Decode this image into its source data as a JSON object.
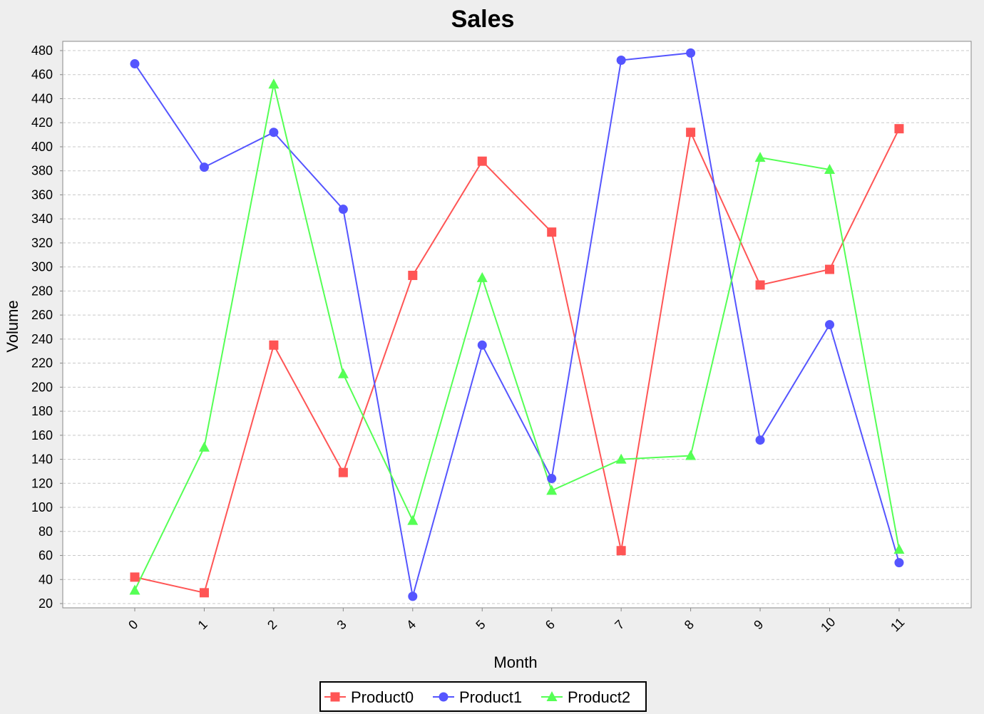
{
  "chart_data": {
    "type": "line",
    "title": "Sales",
    "xlabel": "Month",
    "ylabel": "Volume",
    "categories": [
      "0",
      "1",
      "2",
      "3",
      "4",
      "5",
      "6",
      "7",
      "8",
      "9",
      "10",
      "11"
    ],
    "ylim": [
      15,
      485
    ],
    "yticks": [
      20,
      40,
      60,
      80,
      100,
      120,
      140,
      160,
      180,
      200,
      220,
      240,
      260,
      280,
      300,
      320,
      340,
      360,
      380,
      400,
      420,
      440,
      460,
      480
    ],
    "grid": true,
    "legend_position": "bottom",
    "series": [
      {
        "name": "Product0",
        "color": "#ff5555",
        "marker": "square",
        "values": [
          42,
          29,
          235,
          129,
          293,
          388,
          329,
          64,
          412,
          285,
          298,
          415
        ]
      },
      {
        "name": "Product1",
        "color": "#5555ff",
        "marker": "circle",
        "values": [
          469,
          383,
          412,
          348,
          26,
          235,
          124,
          472,
          478,
          156,
          252,
          54
        ]
      },
      {
        "name": "Product2",
        "color": "#55ff55",
        "marker": "triangle",
        "values": [
          31,
          150,
          452,
          211,
          89,
          291,
          114,
          140,
          143,
          391,
          381,
          65
        ]
      }
    ]
  }
}
